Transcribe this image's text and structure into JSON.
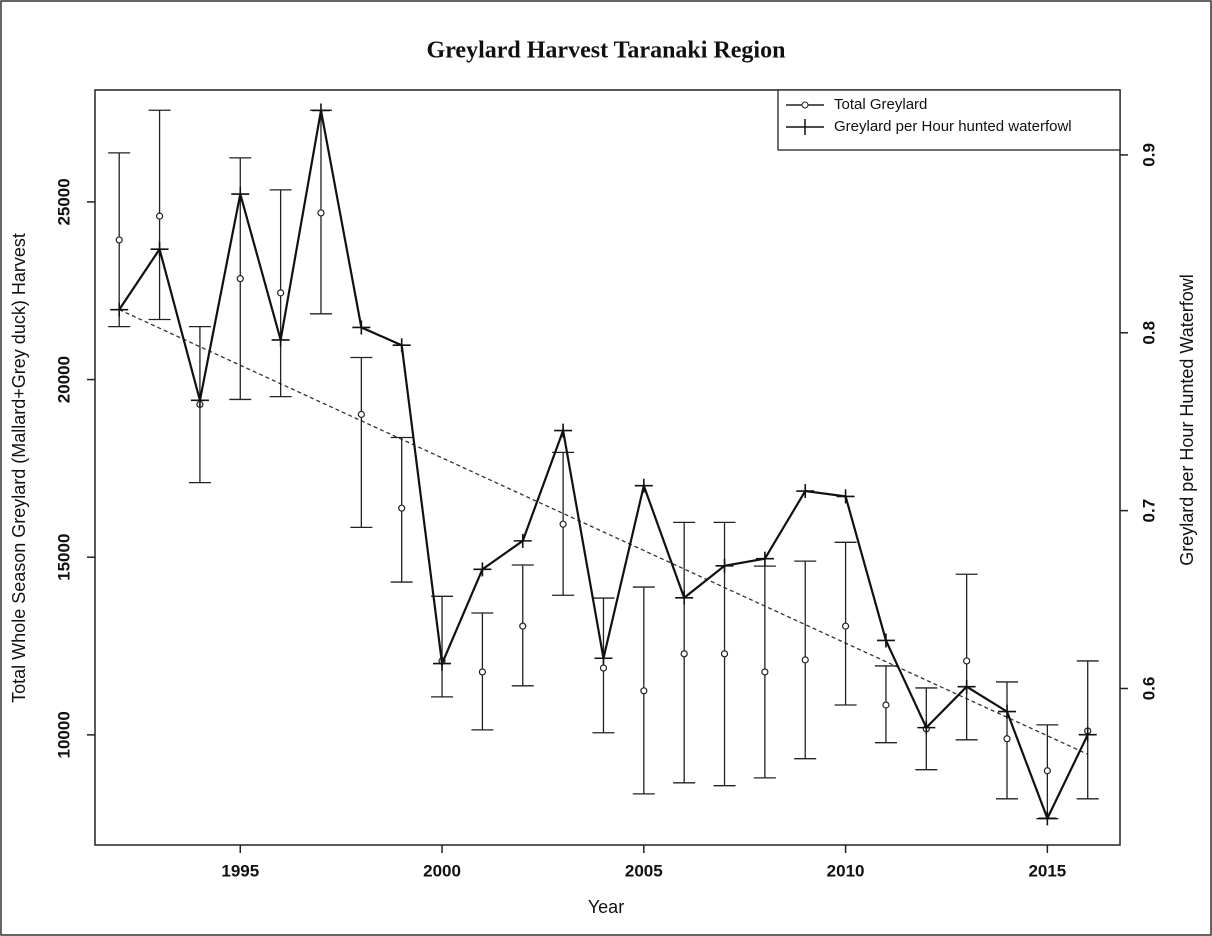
{
  "chart_data": {
    "type": "line",
    "title": "Greylard Harvest Taranaki Region",
    "x_label": "Year",
    "y_label": "Total Whole Season Greylard (Mallard+Grey duck) Harvest",
    "y2_label": "Greylard per Hour Hunted Waterfowl",
    "x": [
      1992,
      1993,
      1994,
      1995,
      1996,
      1997,
      1998,
      1999,
      2000,
      2001,
      2002,
      2003,
      2004,
      2005,
      2006,
      2007,
      2008,
      2009,
      2010,
      2011,
      2012,
      2013,
      2014,
      2015,
      2016
    ],
    "xlim": [
      1991.4,
      2016.8
    ],
    "xticks": [
      1995,
      2000,
      2005,
      2010,
      2015
    ],
    "ylim": [
      6900,
      28150
    ],
    "yticks": [
      10000,
      15000,
      20000,
      25000
    ],
    "y2lim": [
      0.512,
      0.9365
    ],
    "y2ticks": [
      0.6,
      0.7,
      0.8,
      0.9
    ],
    "series": [
      {
        "name": "Total Greylard",
        "color": "#222222",
        "marker": "circle",
        "values": [
          23930,
          24600,
          19300,
          22840,
          22440,
          24690,
          19020,
          16380,
          12080,
          11770,
          13060,
          15930,
          11880,
          11240,
          12280,
          12280,
          11770,
          12110,
          13060,
          10840,
          10170,
          12080,
          9890,
          8990,
          10110
        ],
        "lower": [
          21490,
          21690,
          17100,
          19440,
          19520,
          21850,
          15840,
          14300,
          11070,
          10140,
          11380,
          13930,
          10060,
          8340,
          8650,
          8570,
          8790,
          9330,
          10840,
          9780,
          9020,
          9860,
          8200,
          7640,
          8200
        ],
        "upper": [
          26380,
          27580,
          21490,
          26240,
          25340,
          27580,
          20620,
          18370,
          13900,
          13430,
          14780,
          17950,
          13850,
          14160,
          15980,
          15980,
          14750,
          14890,
          15420,
          11940,
          11320,
          14520,
          11490,
          10280,
          12080
        ]
      },
      {
        "name": "Greylard per Hour hunted waterfowl",
        "color": "#111111",
        "marker": "plus",
        "axis": "y2",
        "values": [
          0.813,
          0.847,
          0.762,
          0.878,
          0.796,
          0.925,
          0.803,
          0.793,
          0.614,
          0.667,
          0.683,
          0.745,
          0.617,
          0.714,
          0.651,
          0.669,
          0.673,
          0.711,
          0.708,
          0.627,
          0.578,
          0.601,
          0.587,
          0.527,
          0.574
        ]
      }
    ],
    "trend_line": {
      "x": [
        1992,
        2016
      ],
      "values": [
        0.813,
        0.563
      ],
      "axis": "y2"
    }
  }
}
